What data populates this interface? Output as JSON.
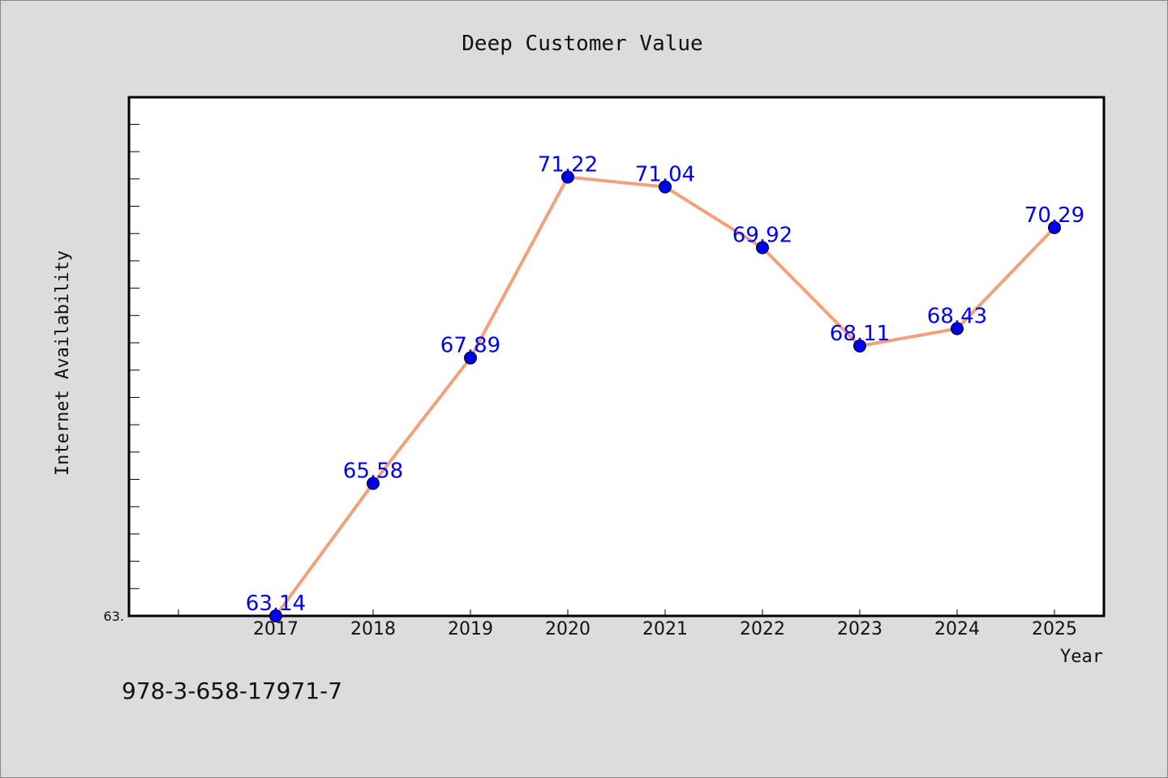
{
  "chart_data": {
    "type": "line",
    "title": "Deep Customer Value",
    "xlabel": "Year",
    "ylabel": "Internet Availability",
    "categories": [
      "2017",
      "2018",
      "2019",
      "2020",
      "2021",
      "2022",
      "2023",
      "2024",
      "2025"
    ],
    "series": [
      {
        "values": [
          63.14,
          65.58,
          67.89,
          71.22,
          71.04,
          69.92,
          68.11,
          68.43,
          70.29
        ],
        "labels": [
          "63.14",
          "65.58",
          "67.89",
          "71.22",
          "71.04",
          "69.92",
          "68.11",
          "68.43",
          "70.29"
        ],
        "line_color": "#f4a07a",
        "marker_color": "#0000ee"
      }
    ],
    "ylim": [
      63.14,
      72.69
    ],
    "y_tick_labels": [
      "63."
    ],
    "grid": false,
    "legend": "none",
    "data_label_color": "#0000ff"
  },
  "footer": {
    "isbn": "978-3-658-17971-7"
  }
}
